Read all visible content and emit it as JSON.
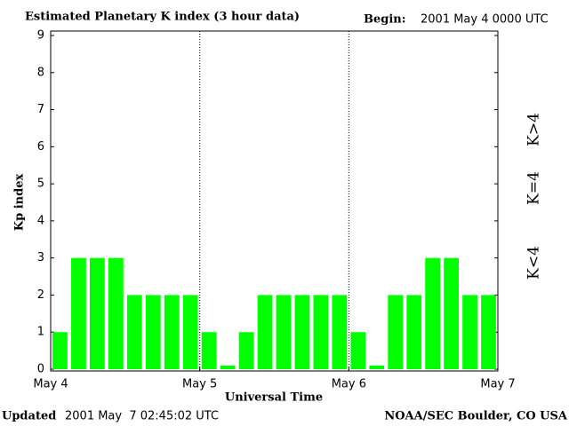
{
  "chart_data": {
    "type": "bar",
    "title": "Estimated Planetary K index (3 hour data)",
    "begin_label": "Begin:",
    "begin": "2001 May 4 0000 UTC",
    "ylabel": "Kp index",
    "xlabel": "Universal Time",
    "updated_label": "Updated",
    "updated": "2001 May  7 02:45:02 UTC",
    "source": "NOAA/SEC Boulder, CO USA",
    "x": [
      1.5,
      4.5,
      7.5,
      10.5,
      13.5,
      16.5,
      19.5,
      22.5,
      25.5,
      28.5,
      31.5,
      34.5,
      37.5,
      40.5,
      43.5,
      46.5,
      49.5,
      52.5,
      55.5,
      58.5,
      61.5,
      64.5,
      67.5,
      70.5
    ],
    "values": [
      1,
      3,
      3,
      3,
      2,
      2,
      2,
      2,
      1,
      0.1,
      1,
      2,
      2,
      2,
      2,
      2,
      1,
      0.1,
      2,
      2,
      3,
      3,
      2,
      2
    ],
    "color": "#00ff00",
    "xlim": [
      0,
      72
    ],
    "xticks": [
      {
        "value": 0,
        "label": "May 4"
      },
      {
        "value": 24,
        "label": "May 5"
      },
      {
        "value": 48,
        "label": "May 6"
      },
      {
        "value": 72,
        "label": "May 7"
      }
    ],
    "ylim": [
      0,
      9
    ],
    "yticks": [
      0,
      1,
      2,
      3,
      4,
      5,
      6,
      7,
      8,
      9
    ],
    "grid": "dotted-x",
    "legend": [
      {
        "label": "K<4",
        "color": "#22dd22"
      },
      {
        "label": "K=4",
        "color": "#ffcc00"
      },
      {
        "label": "K>4",
        "color": "#ee2200"
      }
    ]
  }
}
